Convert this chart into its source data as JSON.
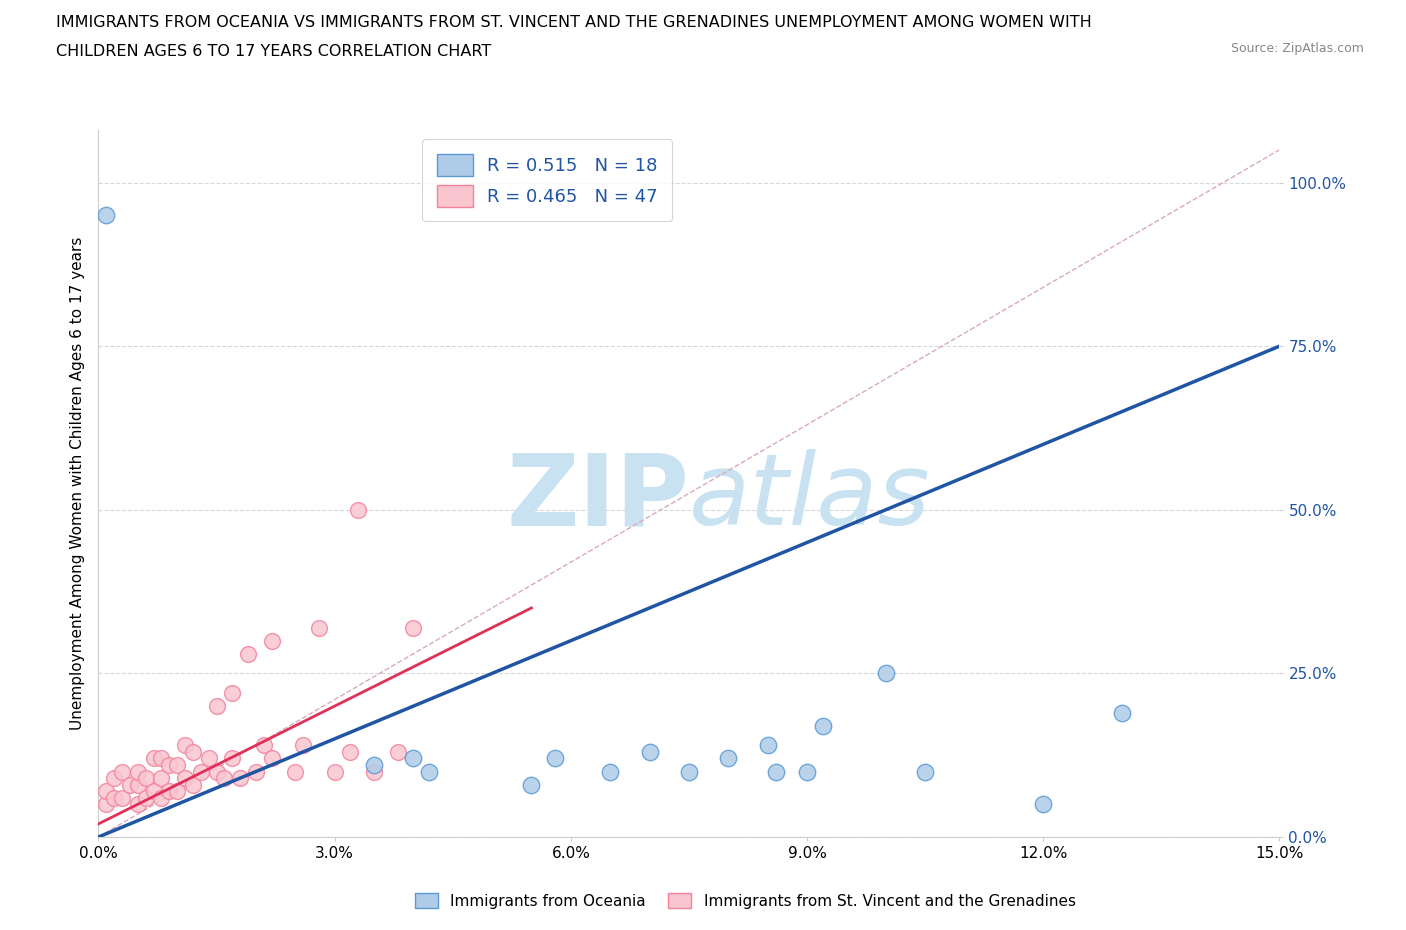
{
  "title_line1": "IMMIGRANTS FROM OCEANIA VS IMMIGRANTS FROM ST. VINCENT AND THE GRENADINES UNEMPLOYMENT AMONG WOMEN WITH",
  "title_line2": "CHILDREN AGES 6 TO 17 YEARS CORRELATION CHART",
  "source": "Source: ZipAtlas.com",
  "ylabel": "Unemployment Among Women with Children Ages 6 to 17 years",
  "xlim": [
    0.0,
    0.15
  ],
  "ylim": [
    0.0,
    1.08
  ],
  "yticks": [
    0.0,
    0.25,
    0.5,
    0.75,
    1.0
  ],
  "ytick_labels": [
    "0.0%",
    "25.0%",
    "50.0%",
    "75.0%",
    "100.0%"
  ],
  "xticks": [
    0.0,
    0.03,
    0.06,
    0.09,
    0.12,
    0.15
  ],
  "xtick_labels": [
    "0.0%",
    "3.0%",
    "6.0%",
    "9.0%",
    "12.0%",
    "15.0%"
  ],
  "blue_face": "#aecce8",
  "blue_edge": "#5b9bd5",
  "pink_face": "#f9c6d0",
  "pink_edge": "#f4829a",
  "blue_R": 0.515,
  "blue_N": 18,
  "pink_R": 0.465,
  "pink_N": 47,
  "blue_line_color": "#2055a4",
  "pink_line_color": "#e0305a",
  "ref_line_color": "#d8aabb",
  "watermark_color": "#c8e2f2",
  "background_color": "#ffffff",
  "grid_color": "#d8d8d8",
  "ytick_color": "#2055a4",
  "blue_line_x": [
    0.0,
    0.15
  ],
  "blue_line_y": [
    0.0,
    0.75
  ],
  "pink_line_x": [
    0.0,
    0.055
  ],
  "pink_line_y": [
    0.02,
    0.35
  ],
  "ref_line_x": [
    0.0,
    0.15
  ],
  "ref_line_y": [
    0.0,
    1.05
  ],
  "blue_scatter_x": [
    0.001,
    0.035,
    0.04,
    0.042,
    0.055,
    0.058,
    0.065,
    0.07,
    0.075,
    0.08,
    0.085,
    0.086,
    0.09,
    0.092,
    0.1,
    0.105,
    0.12,
    0.13
  ],
  "blue_scatter_y": [
    0.95,
    0.11,
    0.12,
    0.1,
    0.08,
    0.12,
    0.1,
    0.13,
    0.1,
    0.12,
    0.14,
    0.1,
    0.1,
    0.17,
    0.25,
    0.1,
    0.05,
    0.19
  ],
  "pink_scatter_x": [
    0.001,
    0.001,
    0.002,
    0.002,
    0.003,
    0.003,
    0.004,
    0.005,
    0.005,
    0.005,
    0.006,
    0.006,
    0.007,
    0.007,
    0.008,
    0.008,
    0.008,
    0.009,
    0.009,
    0.01,
    0.01,
    0.011,
    0.011,
    0.012,
    0.012,
    0.013,
    0.014,
    0.015,
    0.015,
    0.016,
    0.017,
    0.017,
    0.018,
    0.019,
    0.02,
    0.021,
    0.022,
    0.022,
    0.025,
    0.026,
    0.028,
    0.03,
    0.032,
    0.033,
    0.035,
    0.038,
    0.04
  ],
  "pink_scatter_y": [
    0.05,
    0.07,
    0.06,
    0.09,
    0.06,
    0.1,
    0.08,
    0.05,
    0.08,
    0.1,
    0.06,
    0.09,
    0.07,
    0.12,
    0.06,
    0.09,
    0.12,
    0.07,
    0.11,
    0.07,
    0.11,
    0.09,
    0.14,
    0.08,
    0.13,
    0.1,
    0.12,
    0.1,
    0.2,
    0.09,
    0.12,
    0.22,
    0.09,
    0.28,
    0.1,
    0.14,
    0.12,
    0.3,
    0.1,
    0.14,
    0.32,
    0.1,
    0.13,
    0.5,
    0.1,
    0.13,
    0.32
  ]
}
